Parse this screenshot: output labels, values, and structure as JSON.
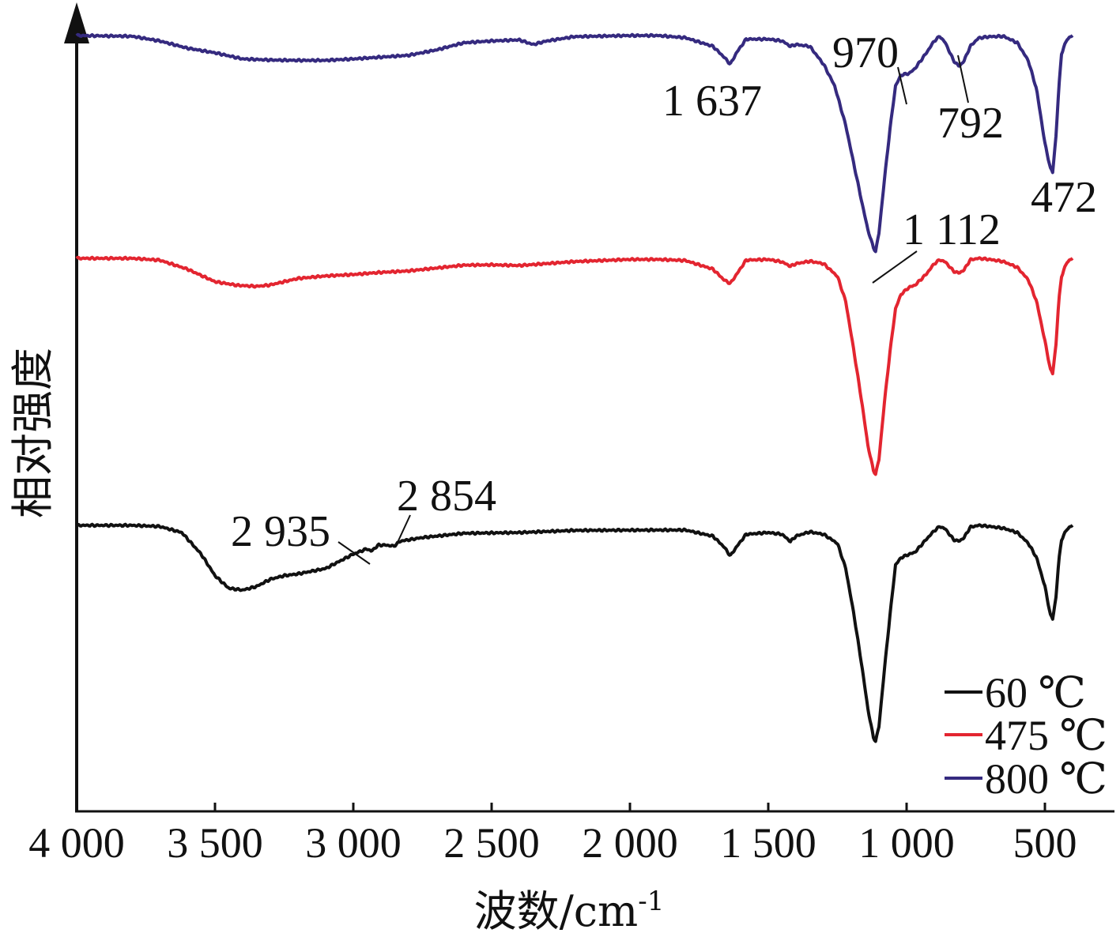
{
  "chart_data": {
    "type": "line",
    "xlabel": "波数/cm⁻¹",
    "ylabel": "相对强度",
    "xlim": [
      4000,
      400
    ],
    "x_reversed": true,
    "y_ticks_shown": false,
    "grid": false,
    "xticks": [
      4000,
      3500,
      3000,
      2500,
      2000,
      1500,
      1000,
      500
    ],
    "xtick_labels": [
      "4 000",
      "3 500",
      "3 000",
      "2 500",
      "2 000",
      "1 500",
      "1 000",
      "500"
    ],
    "legend": {
      "placement": "bottom-right"
    },
    "series": [
      {
        "name": "60 ℃",
        "color": "#111111",
        "offset": 0,
        "points": [
          [
            4000,
            0
          ],
          [
            3800,
            0
          ],
          [
            3700,
            -0.3
          ],
          [
            3620,
            -2
          ],
          [
            3550,
            -8
          ],
          [
            3500,
            -14
          ],
          [
            3450,
            -17.5
          ],
          [
            3400,
            -18
          ],
          [
            3350,
            -17
          ],
          [
            3300,
            -15
          ],
          [
            3250,
            -14
          ],
          [
            3200,
            -13.5
          ],
          [
            3100,
            -12
          ],
          [
            3000,
            -8
          ],
          [
            2950,
            -6.5
          ],
          [
            2935,
            -7.2
          ],
          [
            2910,
            -5.5
          ],
          [
            2880,
            -5.5
          ],
          [
            2854,
            -5.8
          ],
          [
            2830,
            -4.4
          ],
          [
            2750,
            -3.4
          ],
          [
            2600,
            -2.2
          ],
          [
            2400,
            -2
          ],
          [
            2200,
            -1.4
          ],
          [
            1900,
            -1.3
          ],
          [
            1800,
            -1.3
          ],
          [
            1700,
            -3
          ],
          [
            1660,
            -6
          ],
          [
            1637,
            -8.5
          ],
          [
            1615,
            -6
          ],
          [
            1580,
            -2.5
          ],
          [
            1500,
            -2
          ],
          [
            1450,
            -2.5
          ],
          [
            1420,
            -4.5
          ],
          [
            1400,
            -3
          ],
          [
            1350,
            -1.8
          ],
          [
            1300,
            -2.5
          ],
          [
            1250,
            -5
          ],
          [
            1220,
            -12
          ],
          [
            1190,
            -25
          ],
          [
            1160,
            -40
          ],
          [
            1140,
            -51
          ],
          [
            1120,
            -59
          ],
          [
            1112,
            -60
          ],
          [
            1100,
            -56
          ],
          [
            1080,
            -40
          ],
          [
            1060,
            -25
          ],
          [
            1040,
            -11
          ],
          [
            1020,
            -9
          ],
          [
            990,
            -8
          ],
          [
            970,
            -7.5
          ],
          [
            930,
            -4
          ],
          [
            900,
            -1.5
          ],
          [
            880,
            -0.3
          ],
          [
            860,
            -1
          ],
          [
            830,
            -4
          ],
          [
            810,
            -4.4
          ],
          [
            792,
            -3.4
          ],
          [
            770,
            -0.5
          ],
          [
            740,
            0
          ],
          [
            700,
            -0.3
          ],
          [
            650,
            -0.8
          ],
          [
            600,
            -2
          ],
          [
            560,
            -5
          ],
          [
            530,
            -9
          ],
          [
            500,
            -17
          ],
          [
            480,
            -25
          ],
          [
            472,
            -26
          ],
          [
            460,
            -20
          ],
          [
            450,
            -10
          ],
          [
            440,
            -4
          ],
          [
            420,
            -1
          ],
          [
            400,
            0
          ]
        ]
      },
      {
        "name": "475 ℃",
        "color": "#e32530",
        "offset": 1,
        "points": [
          [
            4000,
            0
          ],
          [
            3800,
            0
          ],
          [
            3700,
            -0.5
          ],
          [
            3600,
            -3
          ],
          [
            3500,
            -6.5
          ],
          [
            3420,
            -7.5
          ],
          [
            3350,
            -7.8
          ],
          [
            3300,
            -7.4
          ],
          [
            3200,
            -5.6
          ],
          [
            3100,
            -4.9
          ],
          [
            3000,
            -4.5
          ],
          [
            2900,
            -3.9
          ],
          [
            2800,
            -3.5
          ],
          [
            2700,
            -2.7
          ],
          [
            2600,
            -1.9
          ],
          [
            2500,
            -1.8
          ],
          [
            2400,
            -2
          ],
          [
            2200,
            -0.9
          ],
          [
            2000,
            -0.3
          ],
          [
            1900,
            -0.3
          ],
          [
            1800,
            -0.6
          ],
          [
            1700,
            -3
          ],
          [
            1660,
            -6
          ],
          [
            1637,
            -7
          ],
          [
            1615,
            -4.5
          ],
          [
            1580,
            -0.5
          ],
          [
            1500,
            -0.3
          ],
          [
            1450,
            -1
          ],
          [
            1420,
            -2.2
          ],
          [
            1400,
            -1.5
          ],
          [
            1350,
            -0.8
          ],
          [
            1300,
            -1.5
          ],
          [
            1250,
            -5
          ],
          [
            1220,
            -12
          ],
          [
            1190,
            -26
          ],
          [
            1160,
            -41
          ],
          [
            1140,
            -52
          ],
          [
            1120,
            -59
          ],
          [
            1112,
            -60
          ],
          [
            1100,
            -56
          ],
          [
            1080,
            -40
          ],
          [
            1060,
            -26
          ],
          [
            1040,
            -14
          ],
          [
            1020,
            -10
          ],
          [
            990,
            -8
          ],
          [
            970,
            -7.5
          ],
          [
            930,
            -4.5
          ],
          [
            900,
            -1.5
          ],
          [
            880,
            -0.4
          ],
          [
            860,
            -1
          ],
          [
            830,
            -3.6
          ],
          [
            810,
            -4.1
          ],
          [
            792,
            -3.2
          ],
          [
            770,
            -0.4
          ],
          [
            740,
            0
          ],
          [
            700,
            -0.3
          ],
          [
            650,
            -0.9
          ],
          [
            600,
            -2.5
          ],
          [
            560,
            -6
          ],
          [
            530,
            -12
          ],
          [
            500,
            -23
          ],
          [
            480,
            -31
          ],
          [
            472,
            -32
          ],
          [
            460,
            -24
          ],
          [
            450,
            -12
          ],
          [
            440,
            -5
          ],
          [
            420,
            -1
          ],
          [
            400,
            0
          ]
        ]
      },
      {
        "name": "800 ℃",
        "color": "#352a7f",
        "offset": 2,
        "points": [
          [
            4000,
            0
          ],
          [
            3800,
            -0.2
          ],
          [
            3700,
            -1.5
          ],
          [
            3600,
            -3.5
          ],
          [
            3500,
            -4.8
          ],
          [
            3400,
            -6.5
          ],
          [
            3300,
            -6.8
          ],
          [
            3200,
            -6.9
          ],
          [
            3100,
            -6.9
          ],
          [
            3000,
            -6.5
          ],
          [
            2900,
            -6
          ],
          [
            2800,
            -5.5
          ],
          [
            2700,
            -4
          ],
          [
            2600,
            -2
          ],
          [
            2500,
            -1.5
          ],
          [
            2400,
            -1.2
          ],
          [
            2350,
            -2.5
          ],
          [
            2300,
            -1.5
          ],
          [
            2200,
            -0.3
          ],
          [
            2000,
            0
          ],
          [
            1900,
            0
          ],
          [
            1800,
            -0.6
          ],
          [
            1700,
            -3
          ],
          [
            1660,
            -6
          ],
          [
            1637,
            -8
          ],
          [
            1615,
            -4.8
          ],
          [
            1580,
            -1
          ],
          [
            1500,
            -1
          ],
          [
            1450,
            -1.5
          ],
          [
            1420,
            -3
          ],
          [
            1400,
            -2.5
          ],
          [
            1350,
            -3
          ],
          [
            1300,
            -8
          ],
          [
            1260,
            -14
          ],
          [
            1220,
            -25
          ],
          [
            1190,
            -36
          ],
          [
            1160,
            -47
          ],
          [
            1140,
            -54
          ],
          [
            1120,
            -59
          ],
          [
            1112,
            -60
          ],
          [
            1100,
            -55
          ],
          [
            1080,
            -40
          ],
          [
            1060,
            -26
          ],
          [
            1040,
            -14
          ],
          [
            1020,
            -11
          ],
          [
            990,
            -10.5
          ],
          [
            970,
            -9.2
          ],
          [
            930,
            -5
          ],
          [
            900,
            -1.5
          ],
          [
            880,
            -0.2
          ],
          [
            860,
            -2
          ],
          [
            830,
            -7
          ],
          [
            810,
            -8.6
          ],
          [
            792,
            -7
          ],
          [
            770,
            -3
          ],
          [
            740,
            -0.7
          ],
          [
            700,
            -0.3
          ],
          [
            650,
            -0.2
          ],
          [
            600,
            -2
          ],
          [
            560,
            -7
          ],
          [
            530,
            -15
          ],
          [
            500,
            -30
          ],
          [
            480,
            -37
          ],
          [
            472,
            -38
          ],
          [
            460,
            -28
          ],
          [
            450,
            -15
          ],
          [
            440,
            -5
          ],
          [
            420,
            -1
          ],
          [
            400,
            0
          ]
        ]
      }
    ],
    "annotations": [
      {
        "text": "1 637",
        "x": 1637,
        "series": 2
      },
      {
        "text": "970",
        "x": 970,
        "series": 2
      },
      {
        "text": "792",
        "x": 792,
        "series": 2
      },
      {
        "text": "472",
        "x": 472,
        "series": 2
      },
      {
        "text": "1 112",
        "x": 1112,
        "series": 2
      },
      {
        "text": "2 935",
        "x": 2935,
        "series": 0
      },
      {
        "text": "2 854",
        "x": 2854,
        "series": 0
      }
    ]
  }
}
